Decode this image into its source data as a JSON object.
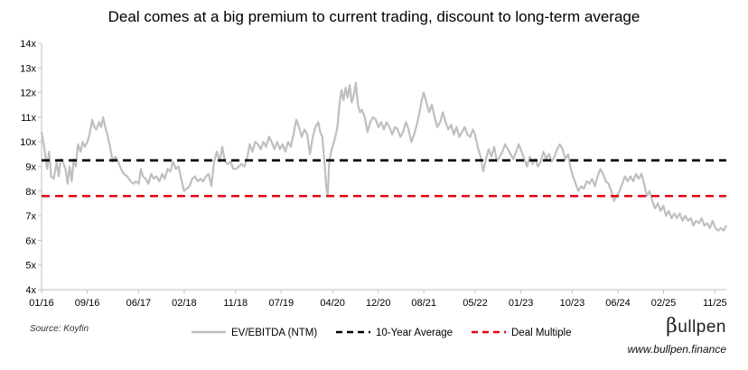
{
  "chart_data": {
    "type": "line",
    "title": "Deal comes at a big premium to current trading, discount to long-term average",
    "xlabel": "",
    "ylabel": "",
    "ylim": [
      4,
      14
    ],
    "y_ticks": [
      "4x",
      "5x",
      "6x",
      "7x",
      "8x",
      "9x",
      "10x",
      "11x",
      "12x",
      "13x",
      "14x"
    ],
    "y_tick_values": [
      4,
      5,
      6,
      7,
      8,
      9,
      10,
      11,
      12,
      13,
      14
    ],
    "x_ticks": [
      "01/16",
      "09/16",
      "06/17",
      "02/18",
      "11/18",
      "07/19",
      "04/20",
      "12/20",
      "08/21",
      "05/22",
      "01/23",
      "10/23",
      "06/24",
      "02/25",
      "11/25"
    ],
    "x_tick_values": [
      2016.0,
      2016.667,
      2017.417,
      2018.083,
      2018.833,
      2019.5,
      2020.25,
      2020.917,
      2021.583,
      2022.333,
      2023.0,
      2023.75,
      2024.417,
      2025.083,
      2025.833
    ],
    "xlim": [
      2016.0,
      2026.0
    ],
    "legend_position": "bottom",
    "series": [
      {
        "name": "EV/EBITDA (NTM)",
        "color": "#bfbfbf",
        "style": "solid",
        "points": [
          [
            2016.0,
            10.4
          ],
          [
            2016.03,
            9.9
          ],
          [
            2016.06,
            9.4
          ],
          [
            2016.08,
            8.9
          ],
          [
            2016.11,
            9.6
          ],
          [
            2016.14,
            8.6
          ],
          [
            2016.18,
            8.5
          ],
          [
            2016.22,
            9.2
          ],
          [
            2016.25,
            8.6
          ],
          [
            2016.28,
            9.3
          ],
          [
            2016.31,
            9.2
          ],
          [
            2016.35,
            8.9
          ],
          [
            2016.38,
            8.3
          ],
          [
            2016.41,
            9.0
          ],
          [
            2016.44,
            8.4
          ],
          [
            2016.47,
            9.3
          ],
          [
            2016.5,
            9.0
          ],
          [
            2016.53,
            9.9
          ],
          [
            2016.57,
            9.6
          ],
          [
            2016.6,
            10.0
          ],
          [
            2016.63,
            9.8
          ],
          [
            2016.67,
            10.0
          ],
          [
            2016.7,
            10.3
          ],
          [
            2016.74,
            10.9
          ],
          [
            2016.77,
            10.6
          ],
          [
            2016.8,
            10.5
          ],
          [
            2016.84,
            10.8
          ],
          [
            2016.87,
            10.6
          ],
          [
            2016.9,
            11.0
          ],
          [
            2016.93,
            10.6
          ],
          [
            2016.96,
            10.3
          ],
          [
            2017.0,
            9.8
          ],
          [
            2017.04,
            9.2
          ],
          [
            2017.08,
            9.4
          ],
          [
            2017.12,
            9.2
          ],
          [
            2017.16,
            8.9
          ],
          [
            2017.2,
            8.7
          ],
          [
            2017.25,
            8.6
          ],
          [
            2017.3,
            8.4
          ],
          [
            2017.34,
            8.3
          ],
          [
            2017.38,
            8.4
          ],
          [
            2017.42,
            8.3
          ],
          [
            2017.45,
            8.9
          ],
          [
            2017.48,
            8.6
          ],
          [
            2017.52,
            8.5
          ],
          [
            2017.56,
            8.3
          ],
          [
            2017.6,
            8.7
          ],
          [
            2017.64,
            8.5
          ],
          [
            2017.68,
            8.6
          ],
          [
            2017.72,
            8.4
          ],
          [
            2017.76,
            8.7
          ],
          [
            2017.8,
            8.5
          ],
          [
            2017.84,
            8.9
          ],
          [
            2017.88,
            8.8
          ],
          [
            2017.92,
            9.2
          ],
          [
            2017.96,
            8.9
          ],
          [
            2018.0,
            9.0
          ],
          [
            2018.04,
            8.5
          ],
          [
            2018.08,
            8.0
          ],
          [
            2018.12,
            8.1
          ],
          [
            2018.16,
            8.2
          ],
          [
            2018.2,
            8.5
          ],
          [
            2018.24,
            8.6
          ],
          [
            2018.28,
            8.4
          ],
          [
            2018.32,
            8.5
          ],
          [
            2018.36,
            8.4
          ],
          [
            2018.4,
            8.6
          ],
          [
            2018.44,
            8.7
          ],
          [
            2018.48,
            8.2
          ],
          [
            2018.52,
            9.2
          ],
          [
            2018.56,
            9.6
          ],
          [
            2018.6,
            9.2
          ],
          [
            2018.64,
            9.8
          ],
          [
            2018.68,
            9.2
          ],
          [
            2018.72,
            9.1
          ],
          [
            2018.76,
            9.2
          ],
          [
            2018.8,
            8.9
          ],
          [
            2018.84,
            8.9
          ],
          [
            2018.88,
            9.0
          ],
          [
            2018.92,
            9.1
          ],
          [
            2018.96,
            9.0
          ],
          [
            2019.0,
            9.3
          ],
          [
            2019.04,
            9.9
          ],
          [
            2019.08,
            9.6
          ],
          [
            2019.12,
            10.0
          ],
          [
            2019.16,
            9.9
          ],
          [
            2019.2,
            9.7
          ],
          [
            2019.24,
            10.0
          ],
          [
            2019.28,
            9.8
          ],
          [
            2019.32,
            10.2
          ],
          [
            2019.36,
            10.0
          ],
          [
            2019.4,
            9.7
          ],
          [
            2019.44,
            10.0
          ],
          [
            2019.48,
            9.7
          ],
          [
            2019.52,
            9.9
          ],
          [
            2019.56,
            9.6
          ],
          [
            2019.6,
            10.0
          ],
          [
            2019.64,
            9.8
          ],
          [
            2019.68,
            10.3
          ],
          [
            2019.72,
            10.9
          ],
          [
            2019.76,
            10.6
          ],
          [
            2019.8,
            10.2
          ],
          [
            2019.84,
            10.5
          ],
          [
            2019.88,
            10.3
          ],
          [
            2019.92,
            9.5
          ],
          [
            2019.96,
            10.2
          ],
          [
            2020.0,
            10.6
          ],
          [
            2020.04,
            10.8
          ],
          [
            2020.07,
            10.4
          ],
          [
            2020.1,
            10.2
          ],
          [
            2020.13,
            9.2
          ],
          [
            2020.16,
            8.1
          ],
          [
            2020.18,
            7.8
          ],
          [
            2020.2,
            9.2
          ],
          [
            2020.23,
            9.6
          ],
          [
            2020.26,
            9.9
          ],
          [
            2020.29,
            10.2
          ],
          [
            2020.32,
            10.6
          ],
          [
            2020.35,
            11.5
          ],
          [
            2020.38,
            12.1
          ],
          [
            2020.41,
            11.7
          ],
          [
            2020.44,
            12.2
          ],
          [
            2020.47,
            11.8
          ],
          [
            2020.5,
            12.3
          ],
          [
            2020.53,
            11.6
          ],
          [
            2020.56,
            11.9
          ],
          [
            2020.59,
            12.4
          ],
          [
            2020.62,
            11.5
          ],
          [
            2020.65,
            11.2
          ],
          [
            2020.68,
            11.3
          ],
          [
            2020.72,
            11.0
          ],
          [
            2020.76,
            10.4
          ],
          [
            2020.8,
            10.8
          ],
          [
            2020.84,
            11.0
          ],
          [
            2020.88,
            10.9
          ],
          [
            2020.92,
            10.6
          ],
          [
            2020.96,
            10.8
          ],
          [
            2021.0,
            10.5
          ],
          [
            2021.04,
            10.8
          ],
          [
            2021.08,
            10.6
          ],
          [
            2021.12,
            10.3
          ],
          [
            2021.16,
            10.6
          ],
          [
            2021.2,
            10.5
          ],
          [
            2021.24,
            10.2
          ],
          [
            2021.28,
            10.4
          ],
          [
            2021.32,
            10.8
          ],
          [
            2021.36,
            10.5
          ],
          [
            2021.4,
            10.0
          ],
          [
            2021.44,
            10.3
          ],
          [
            2021.48,
            10.7
          ],
          [
            2021.52,
            11.2
          ],
          [
            2021.56,
            11.8
          ],
          [
            2021.58,
            12.0
          ],
          [
            2021.62,
            11.6
          ],
          [
            2021.66,
            11.2
          ],
          [
            2021.7,
            11.5
          ],
          [
            2021.74,
            11.0
          ],
          [
            2021.78,
            10.6
          ],
          [
            2021.82,
            10.8
          ],
          [
            2021.86,
            11.2
          ],
          [
            2021.9,
            10.8
          ],
          [
            2021.94,
            10.5
          ],
          [
            2021.98,
            10.7
          ],
          [
            2022.02,
            10.3
          ],
          [
            2022.06,
            10.6
          ],
          [
            2022.1,
            10.2
          ],
          [
            2022.14,
            10.4
          ],
          [
            2022.18,
            10.6
          ],
          [
            2022.22,
            10.3
          ],
          [
            2022.26,
            10.2
          ],
          [
            2022.3,
            10.5
          ],
          [
            2022.33,
            10.3
          ],
          [
            2022.37,
            9.8
          ],
          [
            2022.41,
            9.4
          ],
          [
            2022.45,
            8.8
          ],
          [
            2022.49,
            9.3
          ],
          [
            2022.53,
            9.7
          ],
          [
            2022.57,
            9.4
          ],
          [
            2022.61,
            9.8
          ],
          [
            2022.65,
            9.2
          ],
          [
            2022.69,
            9.4
          ],
          [
            2022.73,
            9.6
          ],
          [
            2022.77,
            9.9
          ],
          [
            2022.81,
            9.7
          ],
          [
            2022.85,
            9.5
          ],
          [
            2022.89,
            9.3
          ],
          [
            2022.93,
            9.6
          ],
          [
            2022.97,
            9.9
          ],
          [
            2023.01,
            9.6
          ],
          [
            2023.05,
            9.3
          ],
          [
            2023.09,
            9.0
          ],
          [
            2023.13,
            9.4
          ],
          [
            2023.17,
            9.1
          ],
          [
            2023.21,
            9.3
          ],
          [
            2023.25,
            9.0
          ],
          [
            2023.29,
            9.2
          ],
          [
            2023.33,
            9.6
          ],
          [
            2023.37,
            9.3
          ],
          [
            2023.41,
            9.5
          ],
          [
            2023.45,
            9.2
          ],
          [
            2023.49,
            9.4
          ],
          [
            2023.53,
            9.7
          ],
          [
            2023.57,
            9.9
          ],
          [
            2023.61,
            9.7
          ],
          [
            2023.65,
            9.3
          ],
          [
            2023.69,
            9.5
          ],
          [
            2023.72,
            9.0
          ],
          [
            2023.76,
            8.6
          ],
          [
            2023.8,
            8.3
          ],
          [
            2023.84,
            8.0
          ],
          [
            2023.88,
            8.2
          ],
          [
            2023.92,
            8.1
          ],
          [
            2023.96,
            8.4
          ],
          [
            2024.0,
            8.3
          ],
          [
            2024.04,
            8.5
          ],
          [
            2024.08,
            8.2
          ],
          [
            2024.12,
            8.6
          ],
          [
            2024.16,
            8.9
          ],
          [
            2024.2,
            8.7
          ],
          [
            2024.24,
            8.4
          ],
          [
            2024.28,
            8.3
          ],
          [
            2024.32,
            8.0
          ],
          [
            2024.36,
            7.6
          ],
          [
            2024.4,
            7.8
          ],
          [
            2024.44,
            8.0
          ],
          [
            2024.48,
            8.3
          ],
          [
            2024.52,
            8.6
          ],
          [
            2024.56,
            8.4
          ],
          [
            2024.6,
            8.6
          ],
          [
            2024.64,
            8.4
          ],
          [
            2024.68,
            8.7
          ],
          [
            2024.72,
            8.5
          ],
          [
            2024.76,
            8.7
          ],
          [
            2024.8,
            8.3
          ],
          [
            2024.84,
            7.8
          ],
          [
            2024.88,
            8.0
          ],
          [
            2024.92,
            7.6
          ],
          [
            2024.96,
            7.3
          ],
          [
            2025.0,
            7.5
          ],
          [
            2025.04,
            7.2
          ],
          [
            2025.08,
            7.4
          ],
          [
            2025.12,
            7.0
          ],
          [
            2025.16,
            7.2
          ],
          [
            2025.2,
            6.9
          ],
          [
            2025.24,
            7.1
          ],
          [
            2025.28,
            6.9
          ],
          [
            2025.32,
            7.1
          ],
          [
            2025.36,
            6.8
          ],
          [
            2025.4,
            7.0
          ],
          [
            2025.44,
            6.8
          ],
          [
            2025.48,
            6.9
          ],
          [
            2025.52,
            6.6
          ],
          [
            2025.56,
            6.8
          ],
          [
            2025.6,
            6.7
          ],
          [
            2025.64,
            6.9
          ],
          [
            2025.68,
            6.6
          ],
          [
            2025.72,
            6.7
          ],
          [
            2025.76,
            6.5
          ],
          [
            2025.8,
            6.8
          ],
          [
            2025.84,
            6.5
          ],
          [
            2025.88,
            6.4
          ],
          [
            2025.92,
            6.5
          ],
          [
            2025.96,
            6.4
          ],
          [
            2026.0,
            6.6
          ]
        ]
      },
      {
        "name": "10-Year Average",
        "color": "#000000",
        "style": "dashed",
        "value": 9.25
      },
      {
        "name": "Deal Multiple",
        "color": "#e30613",
        "style": "dashed",
        "value": 7.8
      }
    ]
  },
  "footer": {
    "source": "Source: Koyfin",
    "brand_beta": "β",
    "brand_rest": "ullpen",
    "website": "www.bullpen.finance"
  }
}
